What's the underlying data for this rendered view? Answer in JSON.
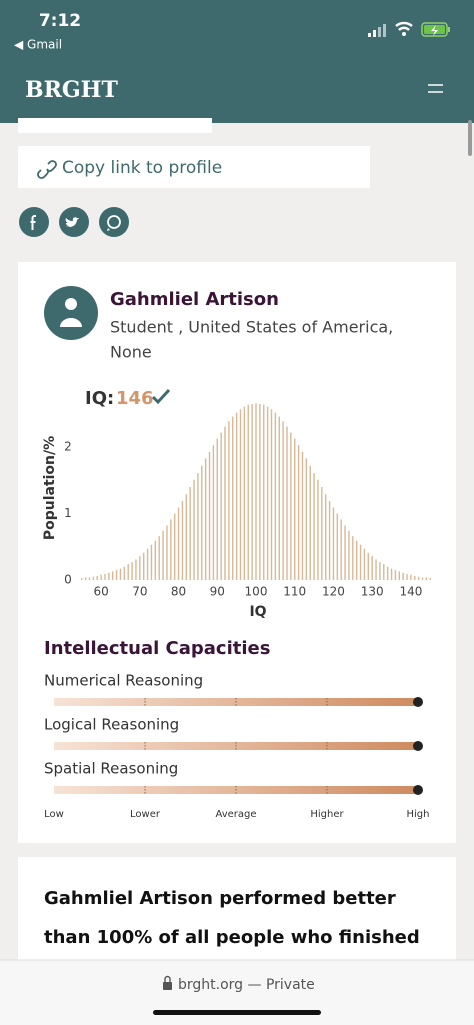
{
  "status_bar": {
    "time": "7:12",
    "back": "◀ Gmail"
  },
  "header": {
    "brand": "BRGHT"
  },
  "share": {
    "copy_link": "Copy link to profile"
  },
  "profile": {
    "name": "Gahmliel Artison",
    "details": [
      "Student , United States of America,",
      "None"
    ],
    "iq_label": "IQ:",
    "iq": 146
  },
  "chart_data": {
    "type": "bar",
    "x": [
      55,
      56,
      57,
      58,
      59,
      60,
      61,
      62,
      63,
      64,
      65,
      66,
      67,
      68,
      69,
      70,
      71,
      72,
      73,
      74,
      75,
      76,
      77,
      78,
      79,
      80,
      81,
      82,
      83,
      84,
      85,
      86,
      87,
      88,
      89,
      90,
      91,
      92,
      93,
      94,
      95,
      96,
      97,
      98,
      99,
      100,
      101,
      102,
      103,
      104,
      105,
      106,
      107,
      108,
      109,
      110,
      111,
      112,
      113,
      114,
      115,
      116,
      117,
      118,
      119,
      120,
      121,
      122,
      123,
      124,
      125,
      126,
      127,
      128,
      129,
      130,
      131,
      132,
      133,
      134,
      135,
      136,
      137,
      138,
      139,
      140,
      141,
      142,
      143,
      144,
      145
    ],
    "values": [
      0.03,
      0.04,
      0.04,
      0.05,
      0.06,
      0.08,
      0.09,
      0.11,
      0.13,
      0.15,
      0.17,
      0.2,
      0.24,
      0.27,
      0.31,
      0.36,
      0.41,
      0.47,
      0.53,
      0.59,
      0.66,
      0.74,
      0.82,
      0.91,
      1.0,
      1.09,
      1.19,
      1.29,
      1.4,
      1.51,
      1.61,
      1.72,
      1.83,
      1.93,
      2.03,
      2.13,
      2.22,
      2.31,
      2.39,
      2.46,
      2.52,
      2.57,
      2.61,
      2.64,
      2.65,
      2.66,
      2.65,
      2.64,
      2.61,
      2.57,
      2.52,
      2.46,
      2.39,
      2.31,
      2.22,
      2.13,
      2.03,
      1.93,
      1.83,
      1.72,
      1.61,
      1.51,
      1.4,
      1.29,
      1.19,
      1.09,
      1.0,
      0.91,
      0.82,
      0.74,
      0.66,
      0.59,
      0.53,
      0.47,
      0.41,
      0.36,
      0.31,
      0.27,
      0.24,
      0.2,
      0.17,
      0.15,
      0.13,
      0.11,
      0.09,
      0.08,
      0.06,
      0.05,
      0.04,
      0.04,
      0.03
    ],
    "color": "#d8b896",
    "xlabel": "IQ",
    "ylabel": "Population/%",
    "xlim": [
      53,
      147
    ],
    "ylim": [
      0,
      2.8
    ],
    "xticks": [
      60,
      70,
      80,
      90,
      100,
      110,
      120,
      130,
      140
    ],
    "yticks": [
      0,
      1,
      2
    ]
  },
  "capacities": {
    "title": "Intellectual Capacities",
    "scale": [
      "Low",
      "Lower",
      "Average",
      "Higher",
      "High"
    ],
    "items": [
      {
        "name": "Numerical Reasoning",
        "level": 4
      },
      {
        "name": "Logical Reasoning",
        "level": 4
      },
      {
        "name": "Spatial Reasoning",
        "level": 4
      }
    ]
  },
  "summary": {
    "lines": [
      "Gahmliel Artison performed better",
      "than 100% of all people who finished"
    ]
  },
  "browser": {
    "address": "brght.org — Private"
  }
}
